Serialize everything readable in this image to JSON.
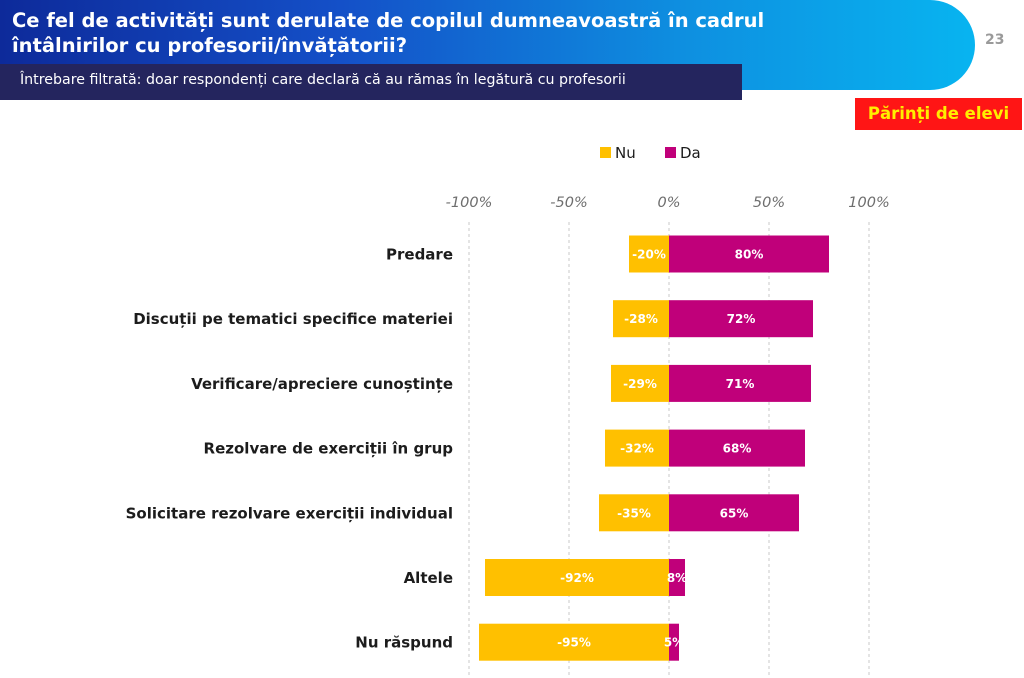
{
  "slide": {
    "title": "Ce fel de activități sunt derulate de copilul dumneavoastră în cadrul întâlnirilor cu profesorii/învățătorii?",
    "subtitle": "Întrebare filtrată: doar respondenți care declară că au rămas în legătură cu profesorii",
    "page_number": "23",
    "segment_badge": "Părinți de elevi"
  },
  "colors": {
    "nu": "#FFC000",
    "da": "#C0007A",
    "header_start": "#0d2a9a",
    "header_end": "#08b4f0",
    "subtitle_bg": "#24255e",
    "badge_bg": "#ff1515",
    "badge_text": "#ffee00"
  },
  "chart_data": {
    "type": "bar",
    "orientation": "horizontal",
    "stacked": "diverging",
    "categories": [
      "Predare",
      "Discuții pe tematici specifice materiei",
      "Verificare/apreciere cunoștințe",
      "Rezolvare de exerciții în grup",
      "Solicitare rezolvare exerciții individual",
      "Altele",
      "Nu răspund"
    ],
    "series": [
      {
        "name": "Nu",
        "values": [
          -20,
          -28,
          -29,
          -32,
          -35,
          -92,
          -95
        ],
        "labels": [
          "-20%",
          "-28%",
          "-29%",
          "-32%",
          "-35%",
          "-92%",
          "-95%"
        ],
        "color": "#FFC000"
      },
      {
        "name": "Da",
        "values": [
          80,
          72,
          71,
          68,
          65,
          8,
          5
        ],
        "labels": [
          "80%",
          "72%",
          "71%",
          "68%",
          "65%",
          "8%",
          "5%"
        ],
        "color": "#C0007A"
      }
    ],
    "xlim": [
      -100,
      100
    ],
    "x_ticks": [
      -100,
      -50,
      0,
      50,
      100
    ],
    "x_tick_labels": [
      "-100%",
      "-50%",
      "0%",
      "50%",
      "100%"
    ],
    "grid": true,
    "legend": "top-center"
  }
}
